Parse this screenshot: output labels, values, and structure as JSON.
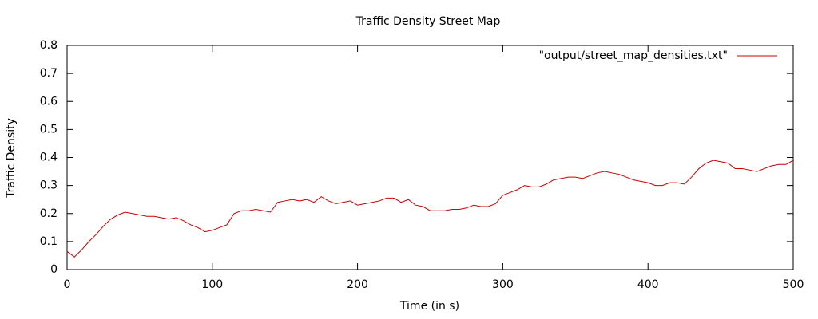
{
  "chart_data": {
    "type": "line",
    "title": "Traffic Density Street Map",
    "x_label": "Time (in s)",
    "y_label": "Traffic Density",
    "x": [
      0,
      5,
      10,
      15,
      20,
      25,
      30,
      35,
      40,
      45,
      50,
      55,
      60,
      65,
      70,
      75,
      80,
      85,
      90,
      95,
      100,
      105,
      110,
      115,
      120,
      125,
      130,
      135,
      140,
      145,
      150,
      155,
      160,
      165,
      170,
      175,
      180,
      185,
      190,
      195,
      200,
      205,
      210,
      215,
      220,
      225,
      230,
      235,
      240,
      245,
      250,
      255,
      260,
      265,
      270,
      275,
      280,
      285,
      290,
      295,
      300,
      305,
      310,
      315,
      320,
      325,
      330,
      335,
      340,
      345,
      350,
      355,
      360,
      365,
      370,
      375,
      380,
      385,
      390,
      395,
      400,
      405,
      410,
      415,
      420,
      425,
      430,
      435,
      440,
      445,
      450,
      455,
      460,
      465,
      470,
      475,
      480,
      485,
      490,
      495,
      500
    ],
    "series": [
      {
        "name": "\"output/street_map_densities.txt\"",
        "color": "#cc0000",
        "values": [
          0.065,
          0.045,
          0.07,
          0.1,
          0.125,
          0.155,
          0.18,
          0.195,
          0.205,
          0.2,
          0.195,
          0.19,
          0.19,
          0.185,
          0.18,
          0.185,
          0.175,
          0.16,
          0.15,
          0.135,
          0.14,
          0.15,
          0.16,
          0.2,
          0.21,
          0.21,
          0.215,
          0.21,
          0.205,
          0.24,
          0.245,
          0.25,
          0.245,
          0.25,
          0.24,
          0.26,
          0.245,
          0.235,
          0.24,
          0.245,
          0.23,
          0.235,
          0.24,
          0.245,
          0.255,
          0.255,
          0.24,
          0.25,
          0.23,
          0.225,
          0.21,
          0.21,
          0.21,
          0.215,
          0.215,
          0.22,
          0.23,
          0.225,
          0.225,
          0.235,
          0.265,
          0.275,
          0.285,
          0.3,
          0.295,
          0.295,
          0.305,
          0.32,
          0.325,
          0.33,
          0.33,
          0.325,
          0.335,
          0.345,
          0.35,
          0.345,
          0.34,
          0.33,
          0.32,
          0.315,
          0.31,
          0.3,
          0.3,
          0.31,
          0.31,
          0.305,
          0.33,
          0.36,
          0.38,
          0.39,
          0.385,
          0.38,
          0.36,
          0.36,
          0.355,
          0.35,
          0.36,
          0.37,
          0.375,
          0.375,
          0.39
        ]
      }
    ],
    "xlim": [
      0,
      500
    ],
    "xticks": [
      0,
      100,
      200,
      300,
      400,
      500
    ],
    "ylim": [
      0,
      0.8
    ],
    "yticks": [
      0,
      0.1,
      0.2,
      0.3,
      0.4,
      0.5,
      0.6,
      0.7,
      0.8
    ],
    "grid": false,
    "legend": "top-right"
  }
}
